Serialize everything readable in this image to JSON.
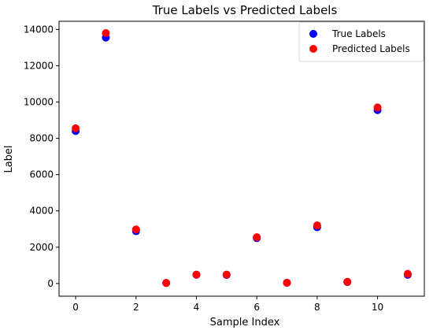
{
  "chart_data": {
    "type": "scatter",
    "title": "True Labels vs Predicted Labels",
    "xlabel": "Sample Index",
    "ylabel": "Label",
    "xlim": [
      -0.55,
      11.55
    ],
    "ylim": [
      -700,
      14450
    ],
    "xticks": [
      0,
      2,
      4,
      6,
      8,
      10
    ],
    "yticks": [
      0,
      2000,
      4000,
      6000,
      8000,
      10000,
      12000,
      14000
    ],
    "grid": false,
    "legend_position": "top-right",
    "series": [
      {
        "name": "True Labels",
        "color": "#0000ff",
        "x": [
          0,
          1,
          2,
          3,
          4,
          5,
          6,
          7,
          8,
          9,
          10,
          11
        ],
        "y": [
          8400,
          13550,
          2880,
          30,
          480,
          470,
          2500,
          40,
          3100,
          80,
          9550,
          480
        ]
      },
      {
        "name": "Predicted Labels",
        "color": "#ff0000",
        "x": [
          0,
          1,
          2,
          3,
          4,
          5,
          6,
          7,
          8,
          9,
          10,
          11
        ],
        "y": [
          8550,
          13800,
          2980,
          30,
          490,
          490,
          2550,
          40,
          3200,
          90,
          9700,
          530
        ]
      }
    ]
  }
}
